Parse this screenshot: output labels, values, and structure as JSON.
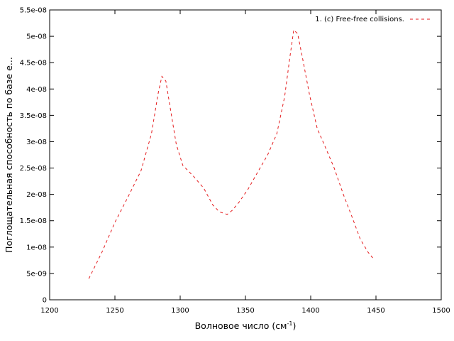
{
  "chart_data": {
    "type": "line",
    "title": "",
    "xlabel": "Волновое число (см",
    "xlabel_sup": "-1",
    "xlabel_suffix": ")",
    "ylabel": "Поглощательная способность по базе e...",
    "xlim": [
      1200,
      1500
    ],
    "ylim": [
      0,
      5.5e-08
    ],
    "x_ticks": [
      1200,
      1250,
      1300,
      1350,
      1400,
      1450,
      1500
    ],
    "x_tick_labels": [
      "1200",
      "1250",
      "1300",
      "1350",
      "1400",
      "1450",
      "1500"
    ],
    "y_ticks": [
      0,
      5e-09,
      1e-08,
      1.5e-08,
      2e-08,
      2.5e-08,
      3e-08,
      3.5e-08,
      4e-08,
      4.5e-08,
      5e-08,
      5.5e-08
    ],
    "y_tick_labels": [
      "0",
      "5e-09",
      "1e-08",
      "1.5e-08",
      "2e-08",
      "2.5e-08",
      "3e-08",
      "3.5e-08",
      "4e-08",
      "4.5e-08",
      "5e-08",
      "5.5e-08"
    ],
    "grid": false,
    "legend_position": "top-right",
    "series": [
      {
        "name": "1. (c) Free-free collisions.",
        "color": "#e41a1c",
        "dash": "dashed",
        "x": [
          1230,
          1240,
          1250,
          1260,
          1270,
          1278,
          1283,
          1286,
          1289,
          1293,
          1297,
          1302,
          1310,
          1318,
          1325,
          1330,
          1336,
          1340,
          1345,
          1352,
          1360,
          1367,
          1374,
          1380,
          1384,
          1387,
          1390,
          1394,
          1399,
          1405,
          1412,
          1418,
          1425,
          1432,
          1438,
          1444,
          1448
        ],
        "y": [
          4e-09,
          9e-09,
          1.47e-08,
          1.95e-08,
          2.45e-08,
          3.15e-08,
          3.9e-08,
          4.24e-08,
          4.15e-08,
          3.55e-08,
          2.95e-08,
          2.55e-08,
          2.35e-08,
          2.12e-08,
          1.8e-08,
          1.67e-08,
          1.62e-08,
          1.7e-08,
          1.85e-08,
          2.1e-08,
          2.45e-08,
          2.75e-08,
          3.15e-08,
          3.85e-08,
          4.6e-08,
          5.12e-08,
          5.05e-08,
          4.55e-08,
          3.9e-08,
          3.25e-08,
          2.85e-08,
          2.5e-08,
          2e-08,
          1.55e-08,
          1.15e-08,
          9e-09,
          7.8e-09
        ]
      }
    ]
  }
}
